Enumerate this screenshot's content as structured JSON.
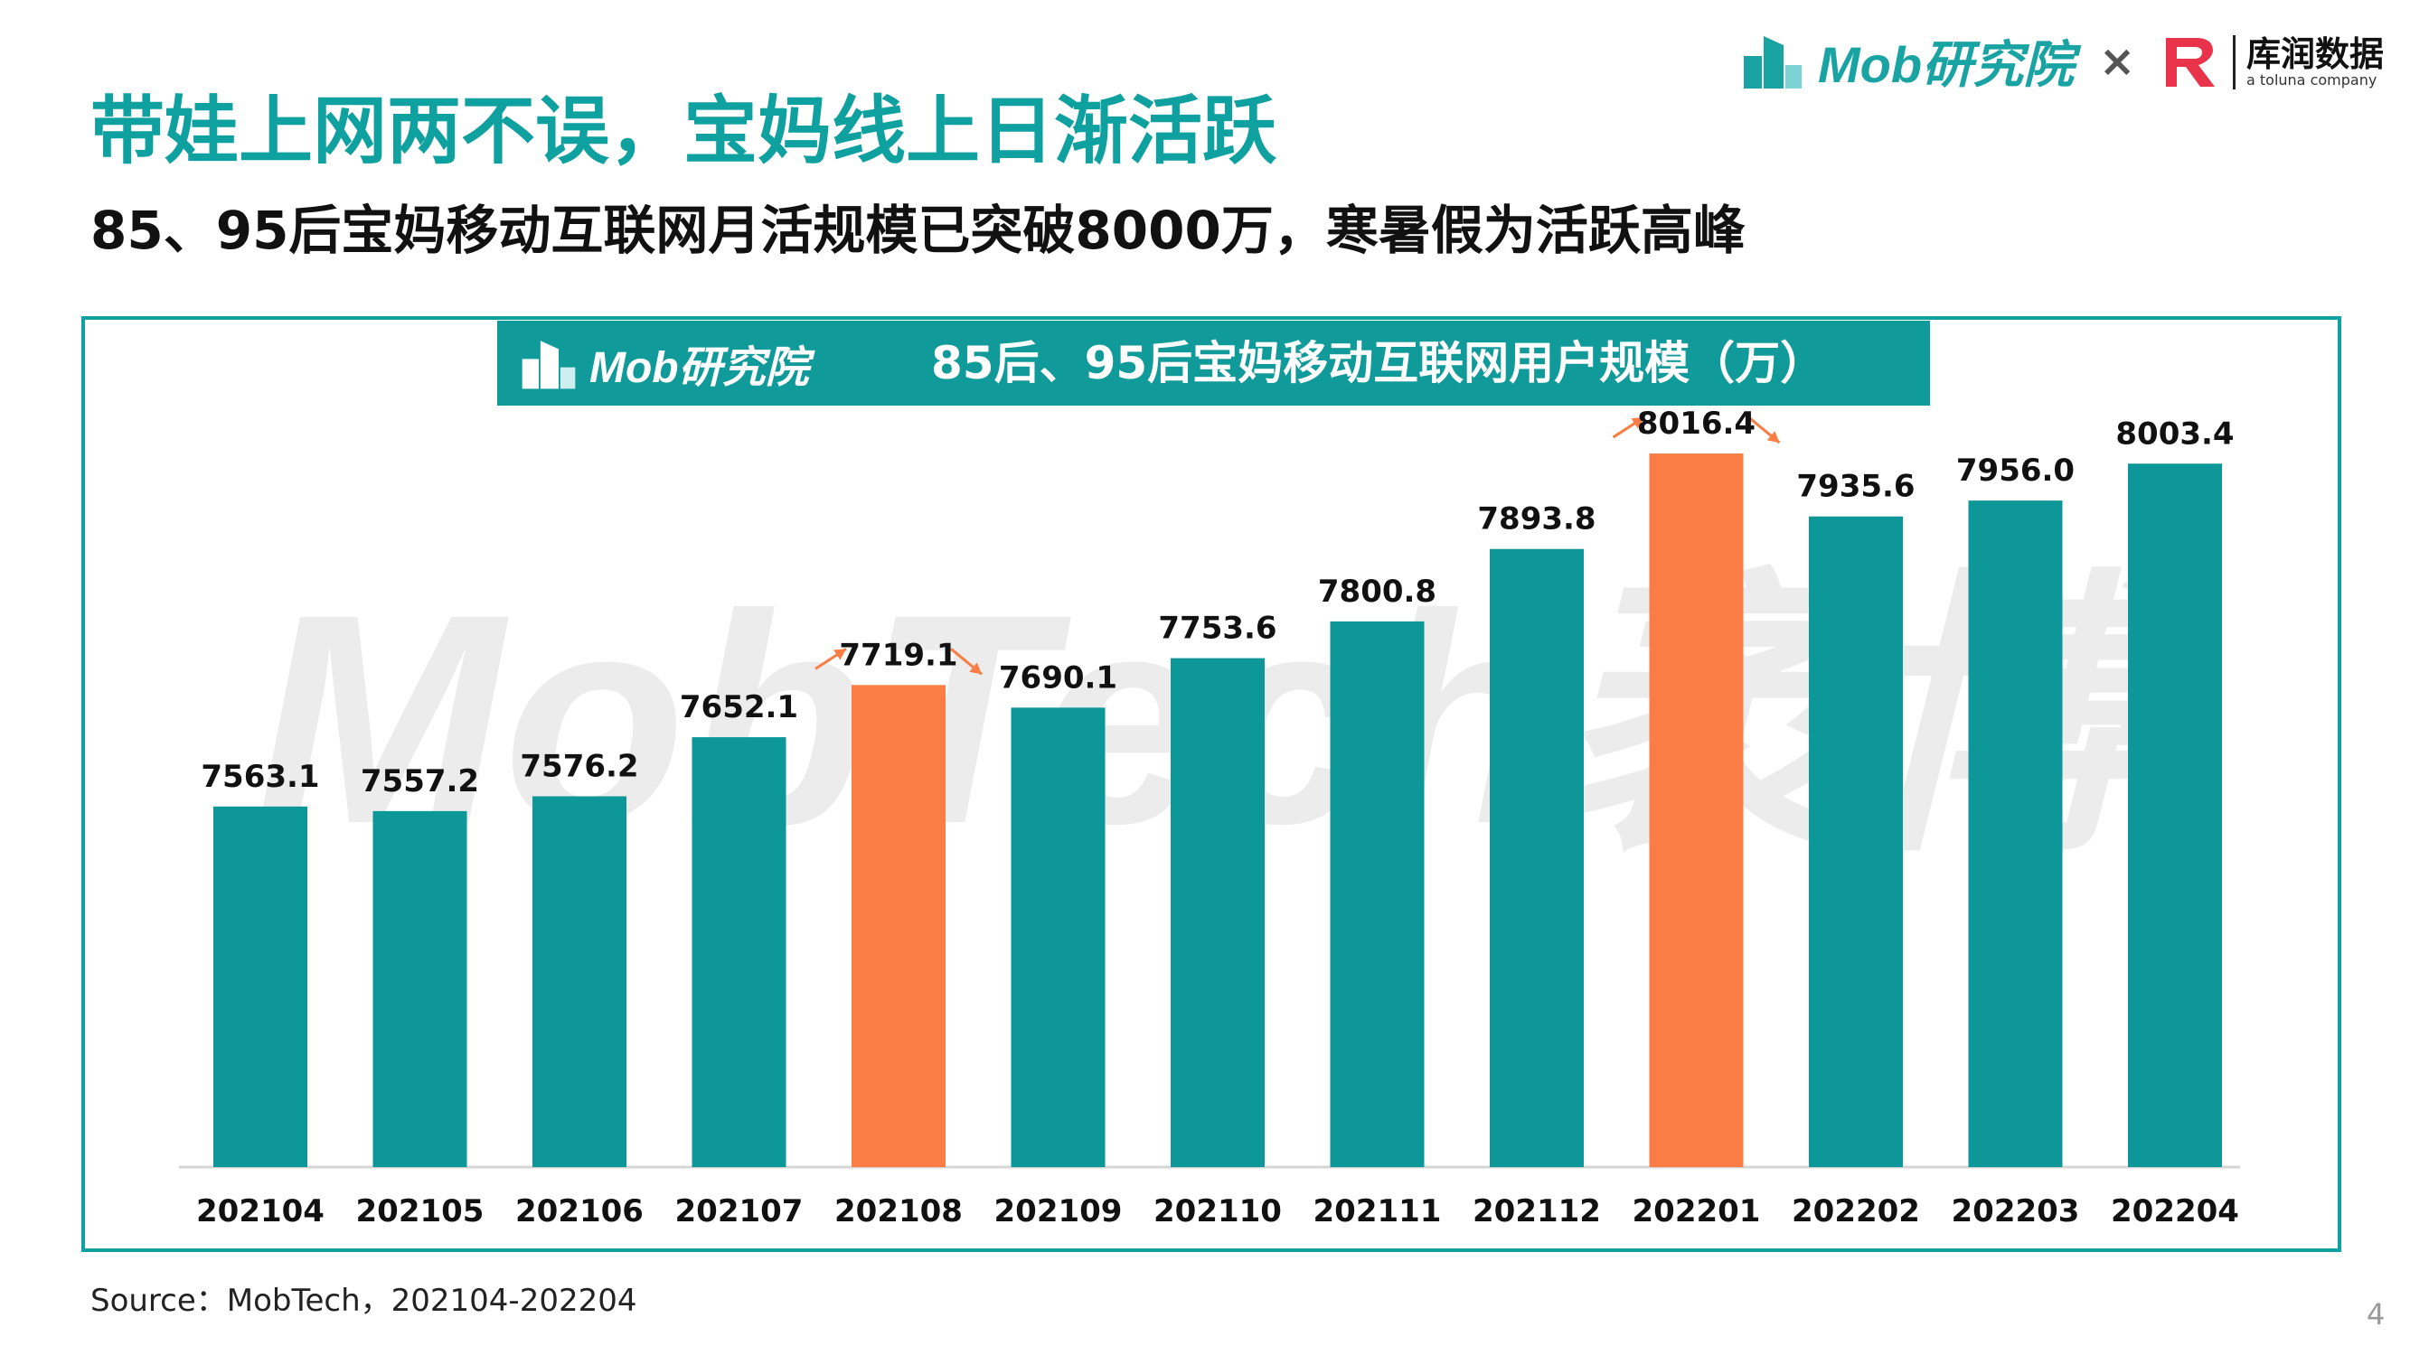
{
  "headline": "带娃上网两不误，宝妈线上日渐活跃",
  "subheadline": "85、95后宝妈移动互联网月活规模已突破8000万，寒暑假为活跃高峰",
  "brand": {
    "name": "Mob研究院",
    "color": "#1aa3a3"
  },
  "partner": {
    "times": "×",
    "name": "库润数据",
    "tagline": "a toluna company",
    "color": "#e8334a"
  },
  "watermark": "MobTech袤博",
  "source": "Source：MobTech，202104-202204",
  "page_number": "4",
  "colors": {
    "teal_bar": "#0d9799",
    "highlight_bar": "#f97d45",
    "frame": "#0fa0a0",
    "banner": "#119a9a"
  },
  "chart_data": {
    "type": "bar",
    "title": "85后、95后宝妈移动互联网用户规模（万）",
    "categories": [
      "202104",
      "202105",
      "202106",
      "202107",
      "202108",
      "202109",
      "202110",
      "202111",
      "202112",
      "202201",
      "202202",
      "202203",
      "202204"
    ],
    "values": [
      7563.1,
      7557.2,
      7576.2,
      7652.1,
      7719.1,
      7690.1,
      7753.6,
      7800.8,
      7893.8,
      8016.4,
      7935.6,
      7956.0,
      8003.4
    ],
    "value_labels": [
      "7563.1",
      "7557.2",
      "7576.2",
      "7652.1",
      "7719.1",
      "7690.1",
      "7753.6",
      "7800.8",
      "7893.8",
      "8016.4",
      "7935.6",
      "7956.0",
      "8003.4"
    ],
    "highlighted": [
      "202108",
      "202201"
    ],
    "xlabel": "",
    "ylabel": "",
    "ylim": [
      7100,
      8100
    ],
    "grid": false,
    "legend": "none"
  }
}
